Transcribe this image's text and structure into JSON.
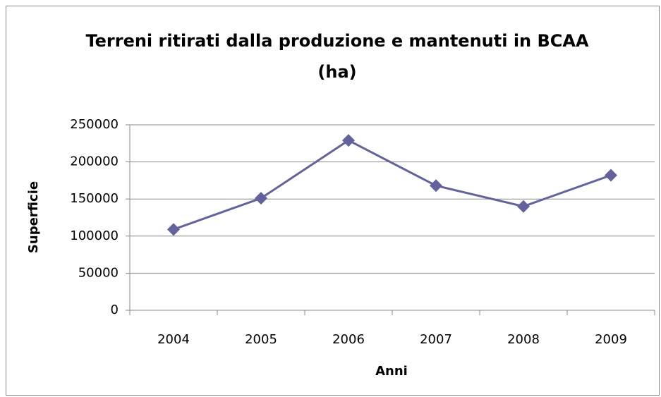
{
  "chart_data": {
    "type": "line",
    "title": "Terreni ritirati dalla produzione e mantenuti in BCAA (ha)",
    "categories": [
      "2004",
      "2005",
      "2006",
      "2007",
      "2008",
      "2009"
    ],
    "series": [
      {
        "name": "Superficie",
        "color": "#62629c",
        "values": [
          109000,
          151000,
          229000,
          168000,
          140000,
          182000
        ]
      }
    ],
    "ylim": [
      0,
      250000
    ],
    "yticks": [
      0,
      50000,
      100000,
      150000,
      200000,
      250000
    ],
    "xlabel": "Anni",
    "ylabel": "Superficie",
    "grid": true
  }
}
